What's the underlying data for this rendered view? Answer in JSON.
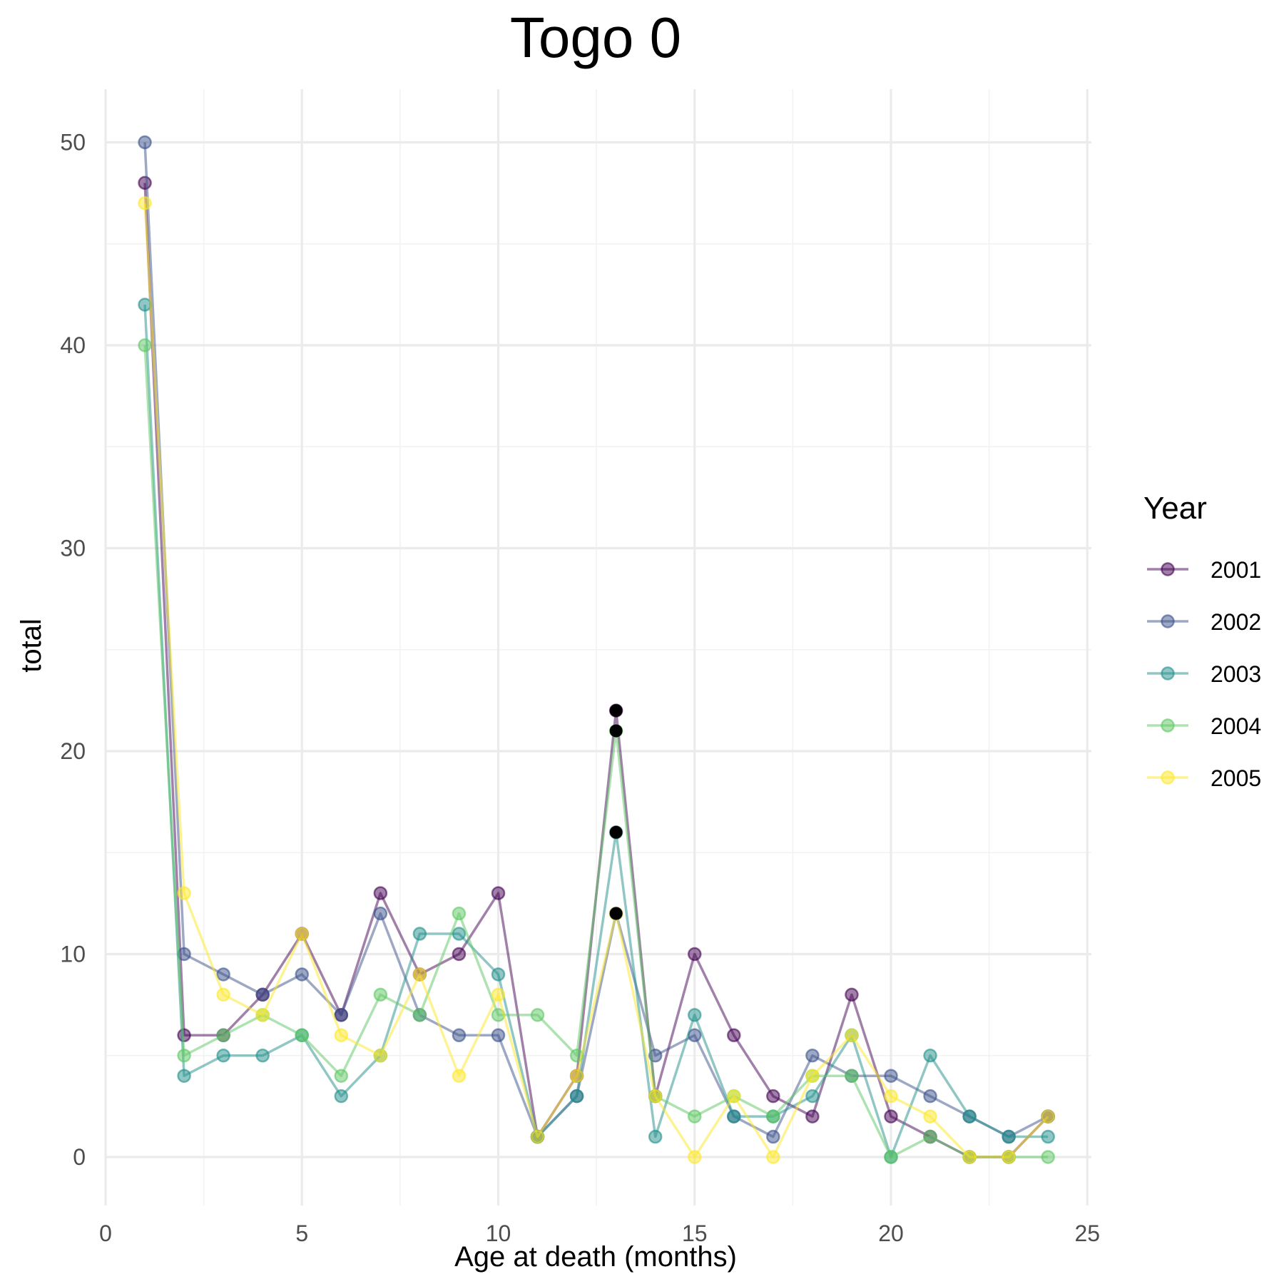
{
  "chart_data": {
    "type": "line",
    "title": "Togo 0",
    "xlabel": "Age at death (months)",
    "ylabel": "total",
    "xlim": [
      0,
      25
    ],
    "ylim": [
      -2,
      52.5
    ],
    "x_ticks": [
      0,
      5,
      10,
      15,
      20,
      25
    ],
    "y_ticks": [
      0,
      10,
      20,
      30,
      40,
      50
    ],
    "grid": true,
    "legend": {
      "title": "Year",
      "position": "right"
    },
    "x": [
      1,
      2,
      3,
      4,
      5,
      6,
      7,
      8,
      9,
      10,
      11,
      12,
      13,
      14,
      15,
      16,
      17,
      18,
      19,
      20,
      21,
      22,
      23,
      24
    ],
    "series": [
      {
        "name": "2001",
        "color": "#440154",
        "values": [
          48,
          6,
          6,
          8,
          11,
          7,
          13,
          9,
          10,
          13,
          1,
          4,
          22,
          3,
          10,
          6,
          3,
          2,
          8,
          2,
          1,
          0,
          0,
          2
        ]
      },
      {
        "name": "2002",
        "color": "#3b528b",
        "values": [
          50,
          10,
          9,
          8,
          9,
          7,
          12,
          7,
          6,
          6,
          1,
          3,
          12,
          5,
          6,
          2,
          1,
          5,
          4,
          4,
          3,
          2,
          1,
          2
        ]
      },
      {
        "name": "2003",
        "color": "#21908c",
        "values": [
          42,
          4,
          5,
          5,
          6,
          3,
          5,
          11,
          11,
          9,
          1,
          3,
          16,
          1,
          7,
          2,
          2,
          3,
          6,
          0,
          5,
          2,
          1,
          1
        ]
      },
      {
        "name": "2004",
        "color": "#5dc863",
        "values": [
          40,
          5,
          6,
          7,
          6,
          4,
          8,
          7,
          12,
          7,
          7,
          5,
          21,
          3,
          2,
          3,
          2,
          4,
          4,
          0,
          1,
          0,
          0,
          0
        ]
      },
      {
        "name": "2005",
        "color": "#fde725",
        "values": [
          47,
          13,
          8,
          7,
          11,
          6,
          5,
          9,
          4,
          8,
          1,
          4,
          12,
          3,
          0,
          3,
          0,
          4,
          6,
          3,
          2,
          0,
          0,
          2
        ]
      }
    ],
    "highlight_points": {
      "x": 13,
      "values": [
        22,
        21,
        16,
        12
      ],
      "color": "#000000"
    }
  }
}
